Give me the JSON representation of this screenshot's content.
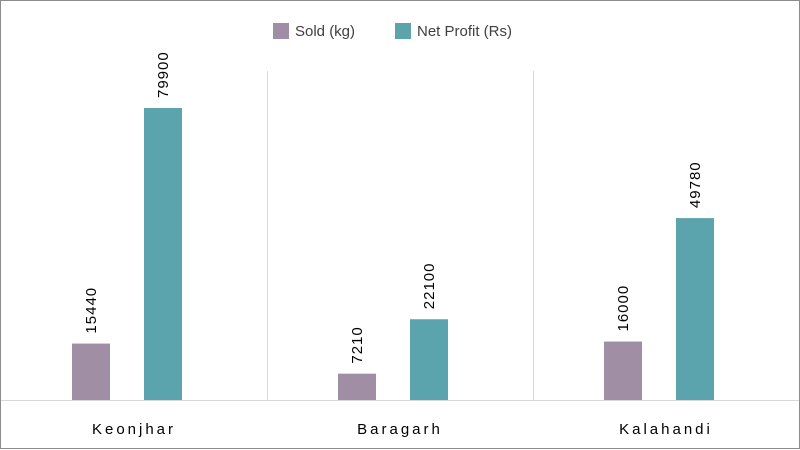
{
  "chart_data": {
    "type": "bar",
    "title": "",
    "xlabel": "",
    "ylabel": "",
    "categories": [
      "Keonjhar",
      "Baragarh",
      "Kalahandi"
    ],
    "series": [
      {
        "name": "Sold (kg)",
        "values": [
          15440,
          7210,
          16000
        ],
        "color": "#a08fa4"
      },
      {
        "name": "Net Profit (Rs)",
        "values": [
          79900,
          22100,
          49780
        ],
        "color": "#5ba4ae"
      }
    ],
    "ylim": [
      0,
      90000
    ],
    "grid": false,
    "legend_position": "top-center",
    "data_labels": true
  }
}
